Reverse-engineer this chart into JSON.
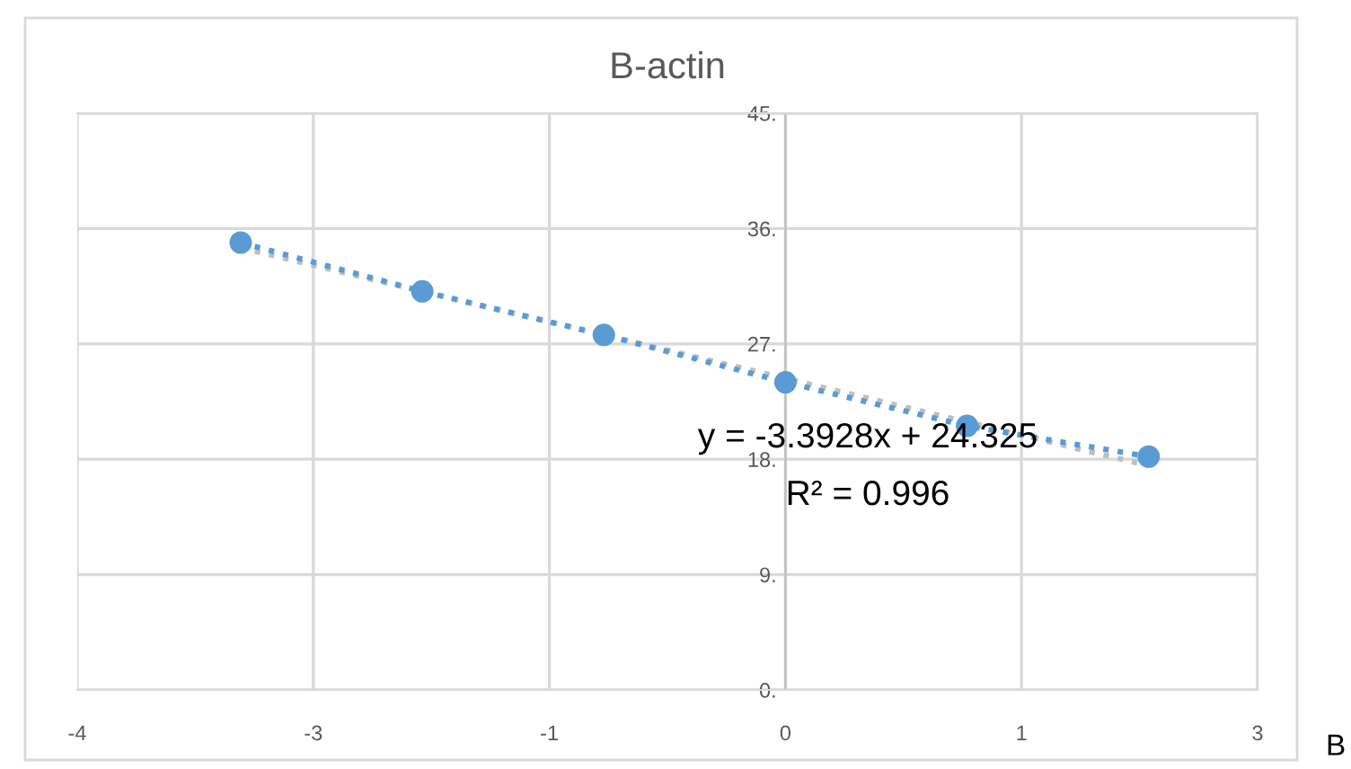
{
  "chart_data": {
    "type": "line",
    "title": "B-actin",
    "x": [
      -3,
      -2,
      -1,
      0,
      1,
      2
    ],
    "series": [
      {
        "color": "#5b9bd5",
        "values": [
          34.9,
          31.1,
          27.7,
          24.0,
          20.6,
          18.2
        ],
        "marker": "circle",
        "line_style": "dotted"
      },
      {
        "type": "line",
        "color": "#bfbfbf",
        "x": [
          -3,
          2
        ],
        "values": [
          34.5,
          17.5
        ],
        "marker": "none",
        "line_style": "dotted"
      }
    ],
    "xlim": [
      -3.9,
      2.6
    ],
    "xticks": [
      {
        "value": -3.9,
        "label": "-4"
      },
      {
        "value": -2.6,
        "label": "-3"
      },
      {
        "value": -1.3,
        "label": "-1"
      },
      0,
      {
        "value": 1.3,
        "label": "1"
      },
      {
        "value": 2.6,
        "label": "3"
      }
    ],
    "ylim": [
      0,
      45
    ],
    "yticks": [
      {
        "value": 0,
        "label": "0."
      },
      {
        "value": 9,
        "label": "9."
      },
      {
        "value": 18,
        "label": "18."
      },
      {
        "value": 27,
        "label": "27."
      },
      {
        "value": 36,
        "label": "36."
      },
      {
        "value": 45,
        "label": "45."
      }
    ],
    "grid": true,
    "annotations": [
      "y = -3.3928x + 24.325",
      "R² = 0.996",
      "B"
    ]
  }
}
